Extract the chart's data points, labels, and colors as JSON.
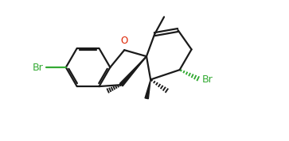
{
  "bg_color": "#ffffff",
  "bond_color": "#1a1a1a",
  "br_color": "#33aa33",
  "o_color": "#dd2200",
  "line_width": 1.6,
  "figsize": [
    3.63,
    1.78
  ],
  "dpi": 100,
  "xlim": [
    0,
    3.63
  ],
  "ylim": [
    0,
    1.78
  ]
}
